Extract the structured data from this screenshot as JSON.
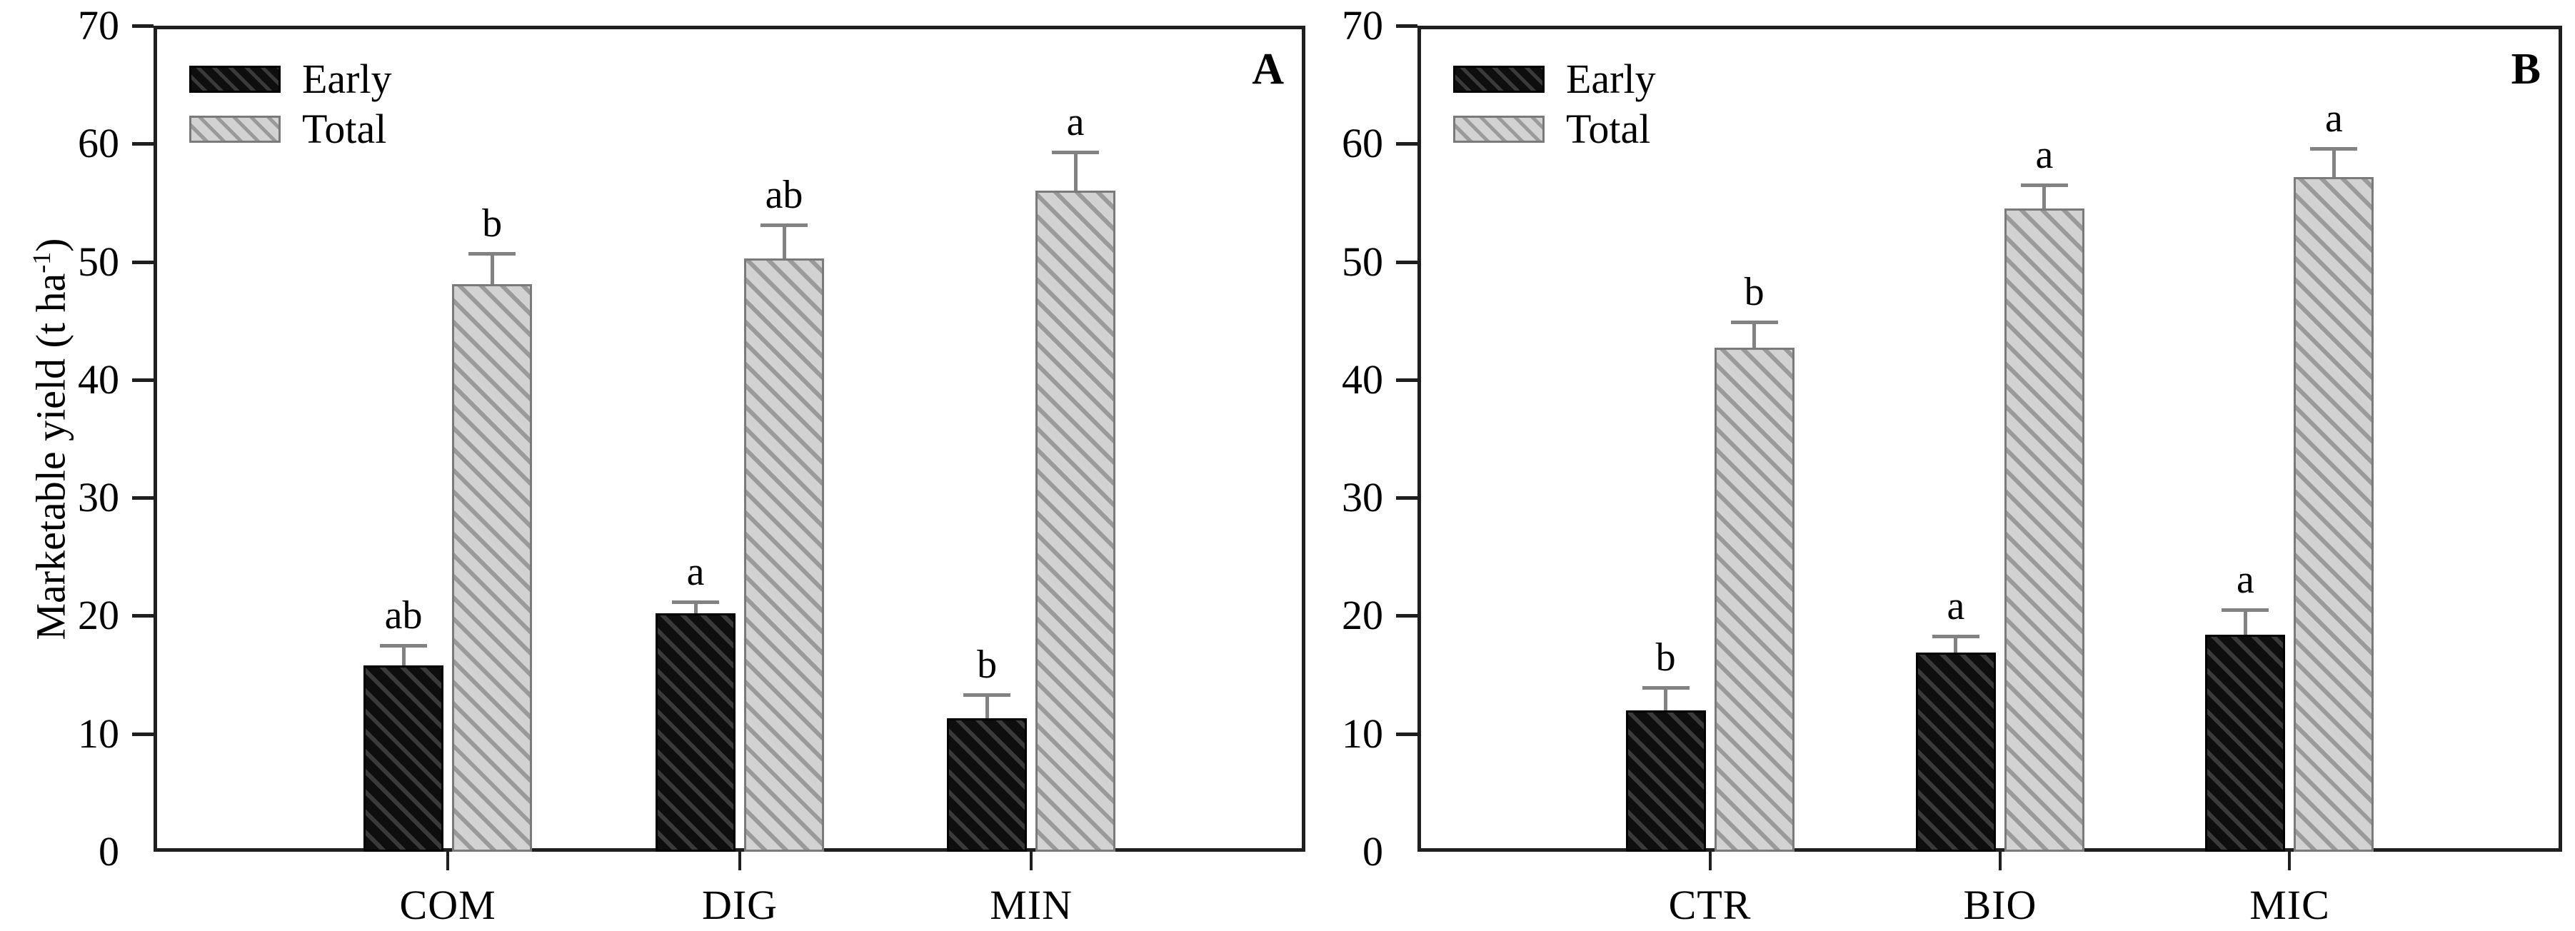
{
  "figure": {
    "background": "#ffffff",
    "description": "Two-panel bar chart of marketable yield with Early and Total series"
  },
  "y_axis": {
    "label_main": "Marketable yield (t ha",
    "label_sup": "-1",
    "label_close": ")",
    "min": 0,
    "max": 70,
    "step": 10,
    "tick_labels": [
      "0",
      "10",
      "20",
      "30",
      "40",
      "50",
      "60",
      "70"
    ]
  },
  "legend": {
    "items": [
      {
        "label": "Early"
      },
      {
        "label": "Total"
      }
    ]
  },
  "chart_data": [
    {
      "panel_letter": "A",
      "type": "bar",
      "categories": [
        "COM",
        "DIG",
        "MIN"
      ],
      "series": [
        {
          "name": "Early",
          "values": [
            15.8,
            20.2,
            11.3
          ],
          "errors_plus": [
            1.7,
            1.0,
            2.0
          ],
          "sig_letters": [
            "ab",
            "a",
            "b"
          ]
        },
        {
          "name": "Total",
          "values": [
            48.1,
            50.3,
            56.0
          ],
          "errors_plus": [
            2.6,
            2.8,
            3.3
          ],
          "sig_letters": [
            "b",
            "ab",
            "a"
          ]
        }
      ],
      "ylabel": "Marketable yield (t ha⁻¹)",
      "ylim": [
        0,
        70
      ],
      "grid": false,
      "legend_position": "top-left"
    },
    {
      "panel_letter": "B",
      "type": "bar",
      "categories": [
        "CTR",
        "BIO",
        "MIC"
      ],
      "series": [
        {
          "name": "Early",
          "values": [
            12.0,
            16.9,
            18.4
          ],
          "errors_plus": [
            1.9,
            1.4,
            2.1
          ],
          "sig_letters": [
            "b",
            "a",
            "a"
          ]
        },
        {
          "name": "Total",
          "values": [
            42.7,
            54.5,
            57.2
          ],
          "errors_plus": [
            2.2,
            2.0,
            2.4
          ],
          "sig_letters": [
            "b",
            "a",
            "a"
          ]
        }
      ],
      "ylabel": "Marketable yield (t ha⁻¹)",
      "ylim": [
        0,
        70
      ],
      "grid": false,
      "legend_position": "top-left"
    }
  ],
  "colors": {
    "early_fill": "#0e0e0e",
    "early_hatch": "#3a3a3a",
    "total_fill": "#d2d2d2",
    "total_hatch": "#9a9a9a",
    "error_bar": "#828282",
    "axis": "#1f1f1f",
    "text": "#000000"
  }
}
